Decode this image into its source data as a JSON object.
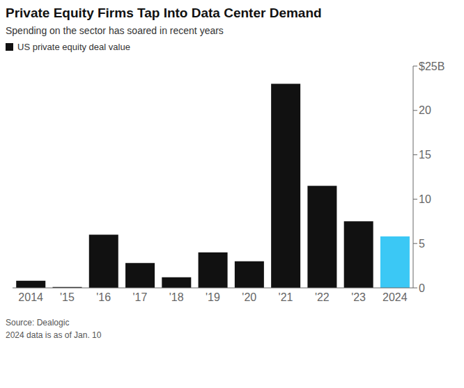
{
  "chart_data": {
    "type": "bar",
    "title": "Private Equity Firms Tap Into Data Center Demand",
    "subtitle": "Spending on the sector has soared in recent years",
    "annotations": [
      "Source: Dealogic\n2024 data is as of Jan. 10"
    ],
    "categories": [
      "2014",
      "'15",
      "'16",
      "'17",
      "'18",
      "'19",
      "'20",
      "'21",
      "'22",
      "'23",
      "2024"
    ],
    "series": [
      {
        "name": "US private equity deal value",
        "color": "#111111",
        "colors": [
          "#111111",
          "#111111",
          "#111111",
          "#111111",
          "#111111",
          "#111111",
          "#111111",
          "#111111",
          "#111111",
          "#111111",
          "#3bc8f5"
        ],
        "values": [
          0.8,
          0.1,
          6.0,
          2.8,
          1.2,
          4.0,
          3.0,
          23.0,
          11.5,
          7.5,
          5.8
        ]
      }
    ],
    "ylim": [
      0,
      25
    ],
    "yticks": [
      0,
      5,
      10,
      15,
      20,
      {
        "value": 25,
        "label": "$25B"
      }
    ],
    "grid": false,
    "legend": "upper left"
  }
}
